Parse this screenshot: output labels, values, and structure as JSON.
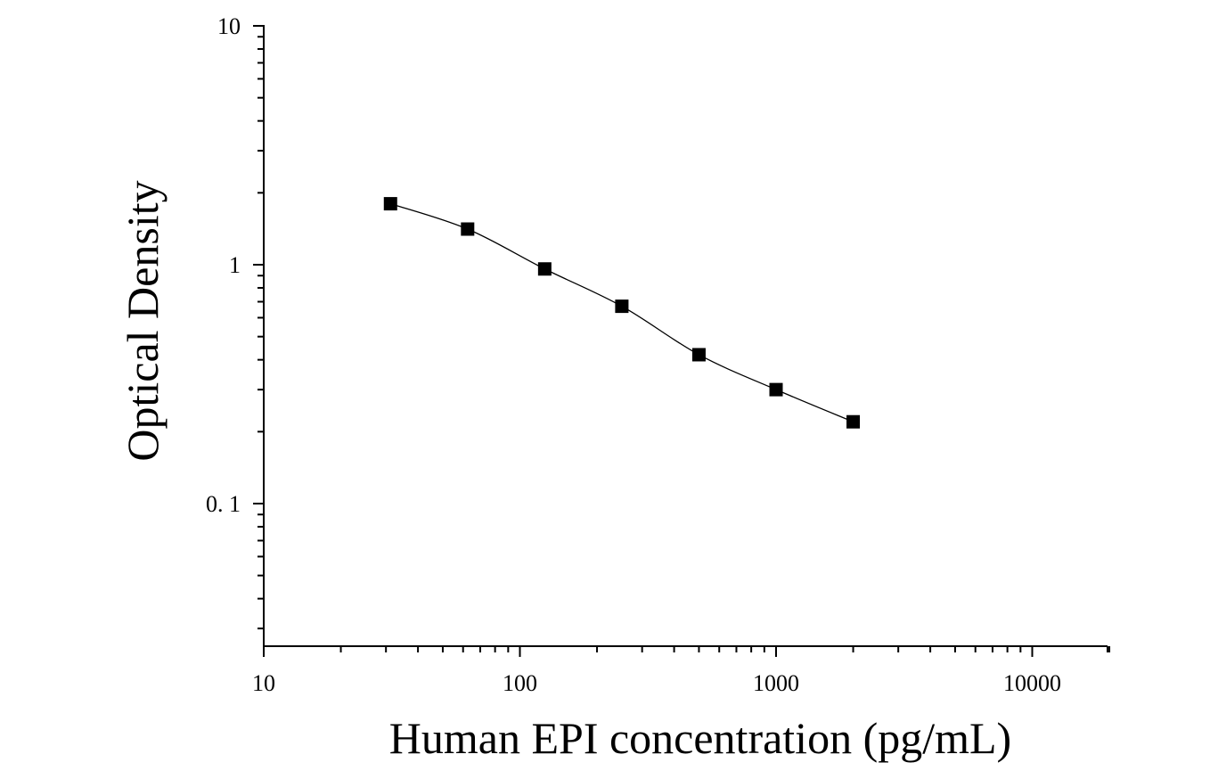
{
  "chart_data": {
    "type": "scatter",
    "title": "",
    "xlabel": "Human EPI concentration (pg/mL)",
    "ylabel": "Optical Density",
    "x_scale": "log",
    "y_scale": "log",
    "xlim": [
      10,
      20000
    ],
    "ylim": [
      0.025,
      10
    ],
    "x_ticks": [
      {
        "value": 10,
        "label": "10"
      },
      {
        "value": 100,
        "label": "100"
      },
      {
        "value": 1000,
        "label": "1000"
      },
      {
        "value": 10000,
        "label": "10000"
      }
    ],
    "y_ticks": [
      {
        "value": 0.1,
        "label": "0. 1"
      },
      {
        "value": 1,
        "label": "1"
      },
      {
        "value": 10,
        "label": "10"
      }
    ],
    "grid": false,
    "series": [
      {
        "marker": "square",
        "color": "#000000",
        "x": [
          31.25,
          62.5,
          125,
          250,
          500,
          1000,
          2000
        ],
        "y": [
          1.8,
          1.41,
          0.96,
          0.67,
          0.42,
          0.3,
          0.22
        ],
        "fit_line": true
      }
    ]
  }
}
